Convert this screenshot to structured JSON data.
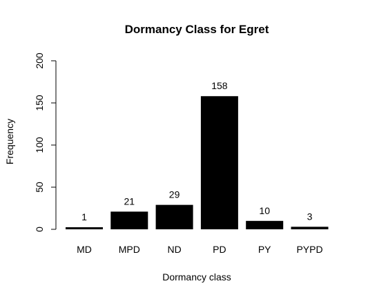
{
  "chart_data": {
    "type": "bar",
    "title": "Dormancy Class for Egret",
    "xlabel": "Dormancy class",
    "ylabel": "Frequency",
    "categories": [
      "MD",
      "MPD",
      "ND",
      "PD",
      "PY",
      "PYPD"
    ],
    "values": [
      1,
      21,
      29,
      158,
      10,
      3
    ],
    "ylim": [
      0,
      200
    ],
    "yticks": [
      0,
      50,
      100,
      150,
      200
    ],
    "bar_color": "#000000",
    "grid": false,
    "data_labels": true
  }
}
